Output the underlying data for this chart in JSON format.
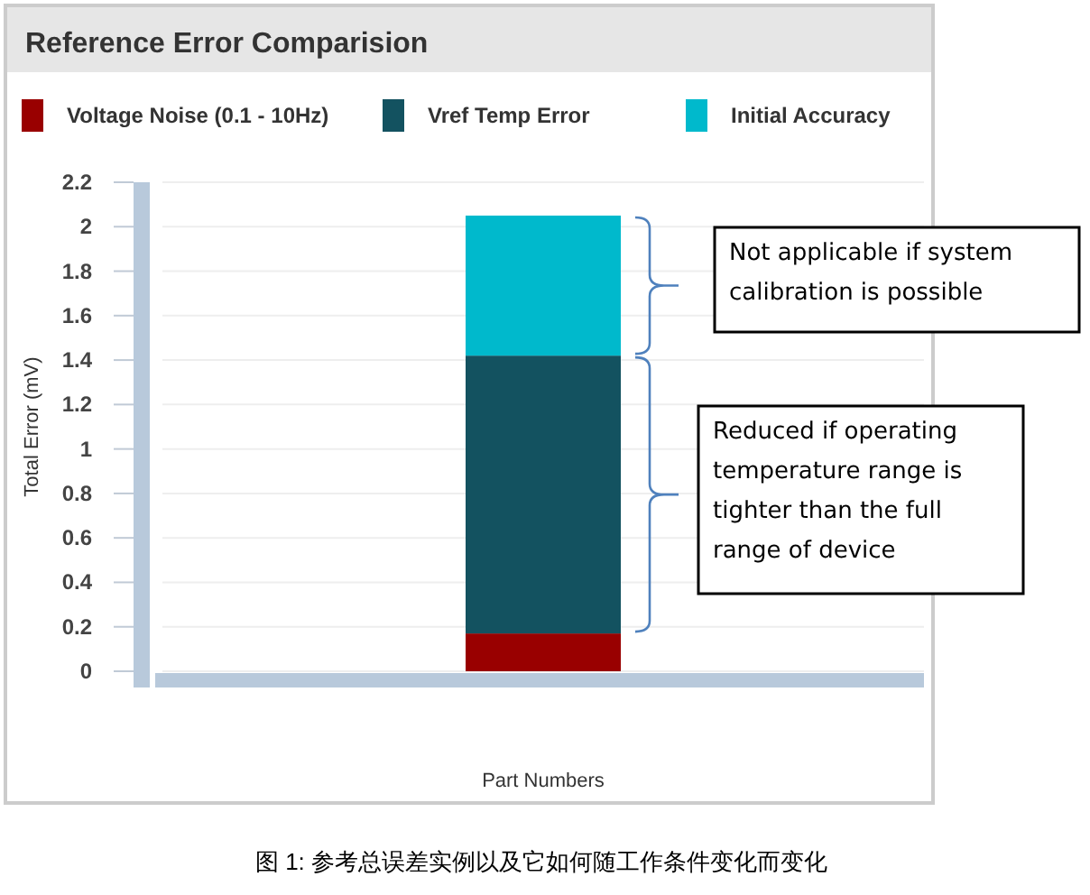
{
  "chart_data": {
    "type": "bar",
    "title": "Reference Error Comparision",
    "xlabel": "Part Numbers",
    "ylabel": "Total Error (mV)",
    "categories": [
      null
    ],
    "stacked": true,
    "series": [
      {
        "name": "Voltage Noise (0.1 - 10Hz)",
        "color": "#990000",
        "values": [
          0.17
        ]
      },
      {
        "name": "Vref Temp Error",
        "color": "#135260",
        "values": [
          1.25
        ]
      },
      {
        "name": "Initial Accuracy",
        "color": "#00b9cc",
        "values": [
          0.63
        ]
      }
    ],
    "ylim": [
      0,
      2.2
    ],
    "yticks": [
      0,
      0.2,
      0.4,
      0.6,
      0.8,
      1,
      1.2,
      1.4,
      1.6,
      1.8,
      2,
      2.2
    ],
    "grid": "y",
    "legend": "top",
    "annotations": [
      "Not applicable if system calibration is possible",
      "Reduced if operating temperature range is tighter than the full range of device",
      "图 1: 参考总误差实例以及它如何随工作条件变化而变化"
    ]
  }
}
